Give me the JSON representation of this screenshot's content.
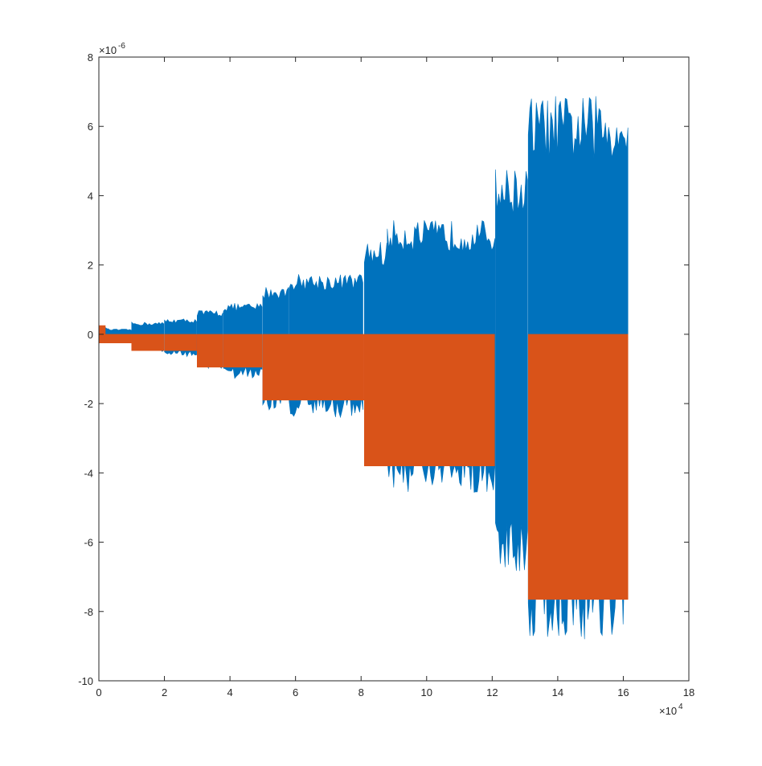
{
  "chart_data": {
    "type": "area",
    "title": "",
    "xlabel": "",
    "ylabel": "",
    "xlim": [
      0,
      18
    ],
    "ylim": [
      -10,
      8
    ],
    "x_multiplier": "×10",
    "x_multiplier_exponent": "4",
    "y_multiplier": "×10",
    "y_multiplier_exponent": "-6",
    "x_ticks": [
      "0",
      "2",
      "4",
      "6",
      "8",
      "10",
      "12",
      "14",
      "16",
      "18"
    ],
    "y_ticks": [
      "8",
      "6",
      "4",
      "2",
      "0",
      "-2",
      "-4",
      "-6",
      "-8",
      "-10"
    ],
    "grid": false,
    "colors": {
      "series1": "#0072BD",
      "series2": "#D95319"
    },
    "series": [
      {
        "color": "#0072BD",
        "segments": [
          {
            "x0": 0.0,
            "x1": 0.3,
            "upper": 0.2,
            "lower": -0.25
          },
          {
            "x0": 0.3,
            "x1": 1.0,
            "upper": 0.15,
            "lower": -0.25
          },
          {
            "x0": 1.0,
            "x1": 2.0,
            "upper": 0.35,
            "lower": -0.5
          },
          {
            "x0": 2.0,
            "x1": 3.0,
            "upper": 0.45,
            "lower": -0.65
          },
          {
            "x0": 3.0,
            "x1": 3.8,
            "upper": 0.7,
            "lower": -1.0
          },
          {
            "x0": 3.8,
            "x1": 5.0,
            "upper": 0.9,
            "lower": -1.3
          },
          {
            "x0": 5.0,
            "x1": 5.8,
            "upper": 1.4,
            "lower": -2.2
          },
          {
            "x0": 5.8,
            "x1": 8.1,
            "upper": 1.75,
            "lower": -2.4
          },
          {
            "x0": 8.1,
            "x1": 8.8,
            "upper": 2.7,
            "lower": -3.8
          },
          {
            "x0": 8.8,
            "x1": 12.1,
            "upper": 3.3,
            "lower": -4.6
          },
          {
            "x0": 12.1,
            "x1": 13.1,
            "upper": 4.8,
            "lower": -7.0
          },
          {
            "x0": 13.1,
            "x1": 16.15,
            "upper": 6.9,
            "lower": -8.9
          }
        ]
      },
      {
        "color": "#D95319",
        "segments": [
          {
            "x0": 0.0,
            "x1": 0.2,
            "upper": 0.25,
            "lower": -0.25
          },
          {
            "x0": 0.2,
            "x1": 1.0,
            "upper": 0,
            "lower": -0.25
          },
          {
            "x0": 1.0,
            "x1": 2.0,
            "upper": 0,
            "lower": -0.47
          },
          {
            "x0": 2.0,
            "x1": 3.0,
            "upper": 0,
            "lower": -0.47
          },
          {
            "x0": 3.0,
            "x1": 3.8,
            "upper": 0,
            "lower": -0.95
          },
          {
            "x0": 3.8,
            "x1": 5.0,
            "upper": 0,
            "lower": -0.95
          },
          {
            "x0": 5.0,
            "x1": 8.1,
            "upper": 0,
            "lower": -1.9
          },
          {
            "x0": 8.1,
            "x1": 12.1,
            "upper": 0,
            "lower": -3.8
          },
          {
            "x0": 13.1,
            "x1": 16.15,
            "upper": 0,
            "lower": -7.65
          }
        ]
      }
    ]
  }
}
